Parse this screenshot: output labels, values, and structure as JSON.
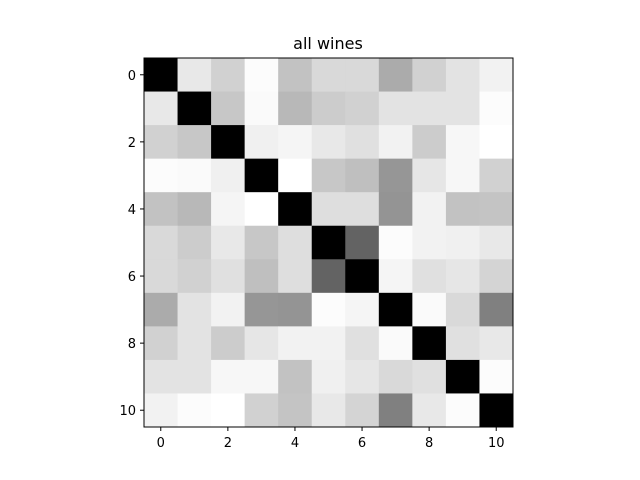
{
  "chart_data": {
    "type": "heatmap",
    "title": "all wines",
    "xlabel": "",
    "ylabel": "",
    "colormap": "gray_r",
    "x_ticks": [
      "0",
      "2",
      "4",
      "6",
      "8",
      "10"
    ],
    "y_ticks": [
      "0",
      "2",
      "4",
      "6",
      "8",
      "10"
    ],
    "x_tick_values": [
      0,
      2,
      4,
      6,
      8,
      10
    ],
    "y_tick_values": [
      0,
      2,
      4,
      6,
      8,
      10
    ],
    "xlim": [
      -0.5,
      10.5
    ],
    "ylim": [
      10.5,
      -0.5
    ],
    "grid": false,
    "values": [
      [
        1.0,
        0.09,
        0.18,
        0.01,
        0.24,
        0.15,
        0.15,
        0.33,
        0.18,
        0.11,
        0.05
      ],
      [
        0.09,
        1.0,
        0.22,
        0.02,
        0.28,
        0.2,
        0.18,
        0.11,
        0.11,
        0.11,
        0.01
      ],
      [
        0.18,
        0.22,
        1.0,
        0.06,
        0.04,
        0.09,
        0.12,
        0.05,
        0.2,
        0.03,
        0.0
      ],
      [
        0.01,
        0.02,
        0.06,
        1.0,
        0.0,
        0.22,
        0.25,
        0.41,
        0.1,
        0.03,
        0.18
      ],
      [
        0.24,
        0.28,
        0.04,
        0.0,
        1.0,
        0.13,
        0.13,
        0.42,
        0.05,
        0.24,
        0.23
      ],
      [
        0.15,
        0.2,
        0.09,
        0.22,
        0.13,
        1.0,
        0.61,
        0.01,
        0.05,
        0.06,
        0.09
      ],
      [
        0.15,
        0.18,
        0.12,
        0.25,
        0.13,
        0.61,
        1.0,
        0.04,
        0.12,
        0.1,
        0.17
      ],
      [
        0.33,
        0.11,
        0.05,
        0.41,
        0.42,
        0.01,
        0.04,
        1.0,
        0.02,
        0.15,
        0.5
      ],
      [
        0.18,
        0.11,
        0.2,
        0.1,
        0.05,
        0.05,
        0.12,
        0.02,
        1.0,
        0.12,
        0.09
      ],
      [
        0.11,
        0.11,
        0.03,
        0.03,
        0.24,
        0.06,
        0.1,
        0.15,
        0.12,
        1.0,
        0.01
      ],
      [
        0.05,
        0.01,
        0.0,
        0.18,
        0.23,
        0.09,
        0.17,
        0.5,
        0.09,
        0.01,
        1.0
      ]
    ]
  }
}
